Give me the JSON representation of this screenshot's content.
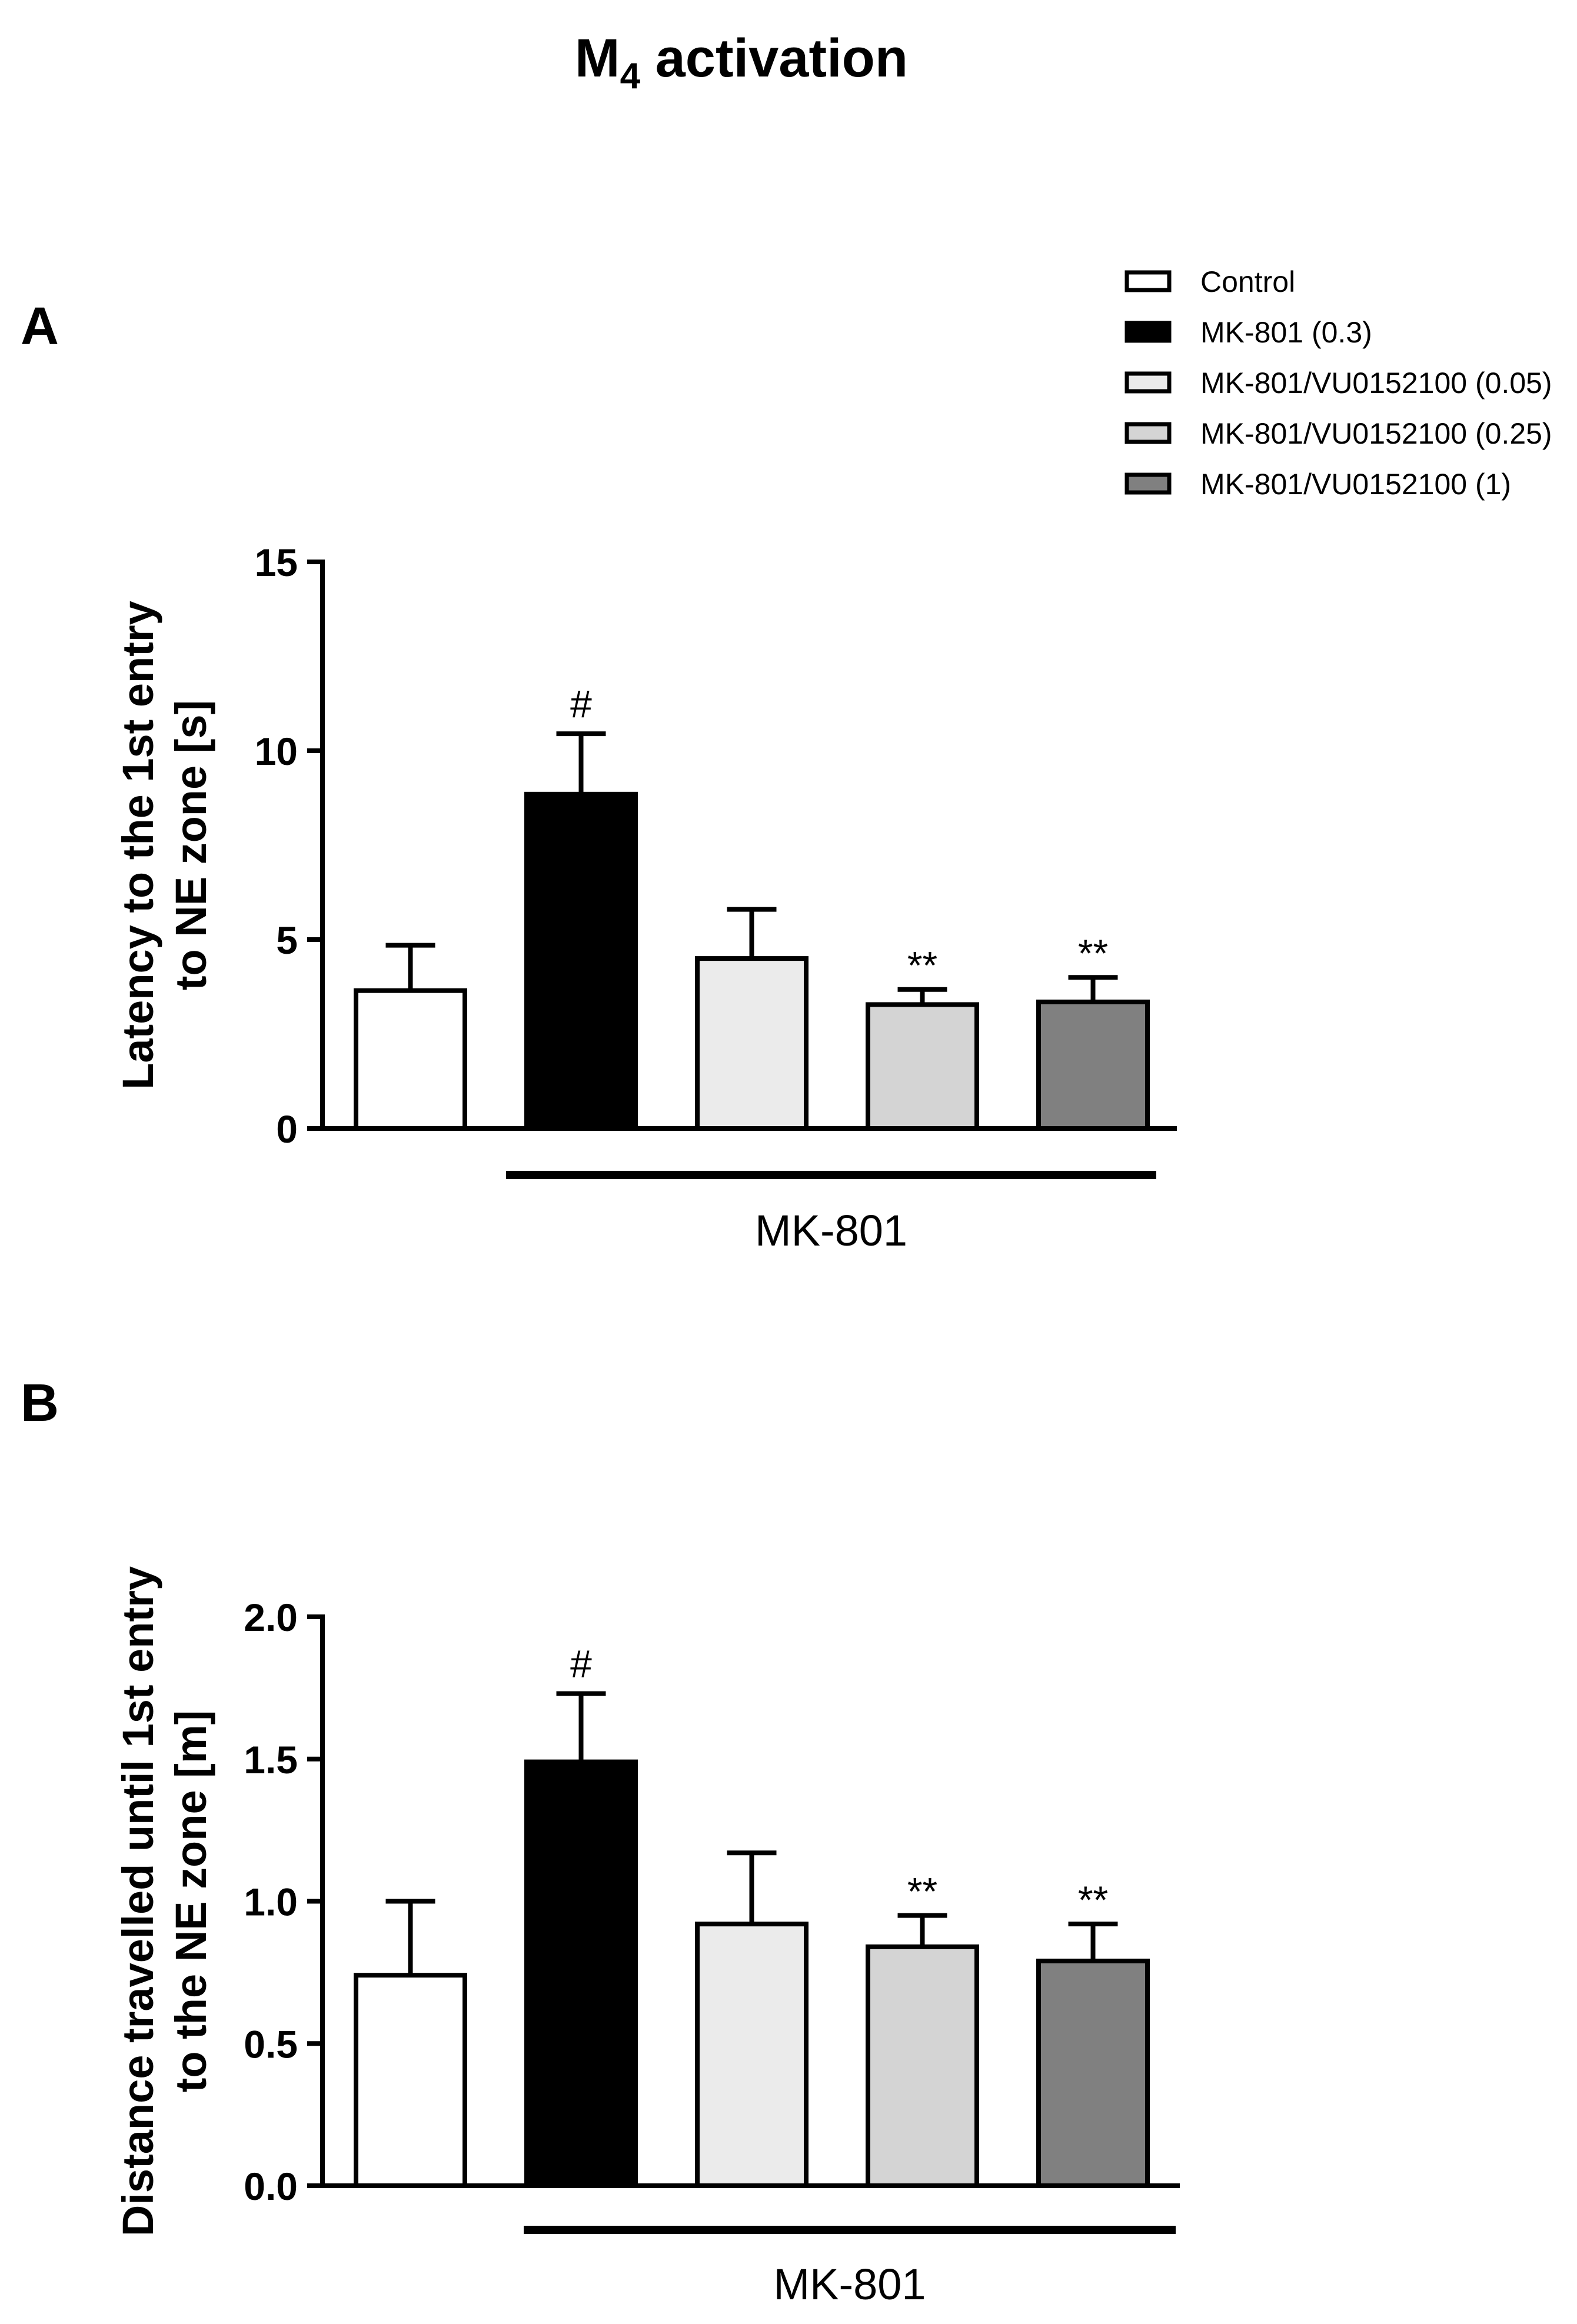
{
  "title": {
    "main": "M",
    "subscript": "4",
    "rest": " activation"
  },
  "legend": [
    {
      "label": "Control",
      "color": "#ffffff"
    },
    {
      "label": "MK-801 (0.3)",
      "color": "#000000"
    },
    {
      "label": "MK-801/VU0152100 (0.05)",
      "color": "#ebebeb"
    },
    {
      "label": "MK-801/VU0152100 (0.25)",
      "color": "#d4d4d4"
    },
    {
      "label": "MK-801/VU0152100 (1)",
      "color": "#808080"
    }
  ],
  "chart_data": [
    {
      "type": "bar",
      "panel": "A",
      "categories": [
        "Control",
        "MK-801 (0.3)",
        "MK-801/VU0152100 (0.05)",
        "MK-801/VU0152100 (0.25)",
        "MK-801/VU0152100 (1)"
      ],
      "values": [
        3.65,
        8.85,
        4.5,
        3.28,
        3.35
      ],
      "errors": [
        1.2,
        1.6,
        1.3,
        0.4,
        0.65
      ],
      "colors": [
        "#ffffff",
        "#000000",
        "#ebebeb",
        "#d4d4d4",
        "#808080"
      ],
      "significance": [
        "",
        "#",
        "",
        "**",
        "**"
      ],
      "ylabel": [
        "Latency to the 1st entry",
        "to NE zone [s]"
      ],
      "ylim": [
        0,
        15
      ],
      "yticks": [
        0,
        5,
        10,
        15
      ],
      "ytick_labels": [
        "0",
        "5",
        "10",
        "15"
      ],
      "group_label": "MK-801"
    },
    {
      "type": "bar",
      "panel": "B",
      "categories": [
        "Control",
        "MK-801 (0.3)",
        "MK-801/VU0152100 (0.05)",
        "MK-801/VU0152100 (0.25)",
        "MK-801/VU0152100 (1)"
      ],
      "values": [
        0.74,
        1.49,
        0.92,
        0.84,
        0.79
      ],
      "errors": [
        0.26,
        0.24,
        0.25,
        0.11,
        0.13
      ],
      "colors": [
        "#ffffff",
        "#000000",
        "#ebebeb",
        "#d4d4d4",
        "#808080"
      ],
      "significance": [
        "",
        "#",
        "",
        "**",
        "**"
      ],
      "ylabel": [
        "Distance travelled until 1st entry",
        "to the NE zone [m]"
      ],
      "ylim": [
        0,
        2.0
      ],
      "yticks": [
        0,
        0.5,
        1.0,
        1.5,
        2.0
      ],
      "ytick_labels": [
        "0.0",
        "0.5",
        "1.0",
        "1.5",
        "2.0"
      ],
      "group_label": "MK-801"
    }
  ]
}
